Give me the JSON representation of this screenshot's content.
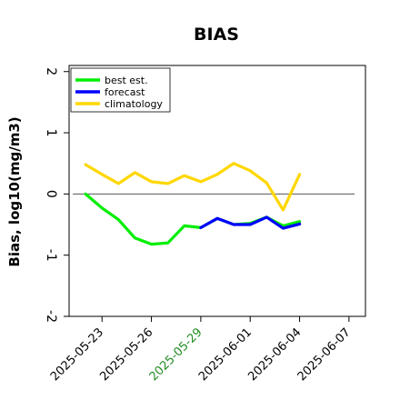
{
  "chart_data": {
    "type": "line",
    "title": "BIAS",
    "xlabel": "",
    "ylabel": "Bias, log10(mg/m3)",
    "xlim": [
      "2025-05-21",
      "2025-06-08"
    ],
    "ylim": [
      -2.0,
      2.1
    ],
    "yticks": [
      -2,
      -1,
      0,
      1,
      2
    ],
    "xticks": [
      "2025-05-23",
      "2025-05-26",
      "2025-05-29",
      "2025-06-01",
      "2025-06-04",
      "2025-06-07"
    ],
    "xtick_colors": [
      "#000000",
      "#000000",
      "#228B22",
      "#000000",
      "#000000",
      "#000000"
    ],
    "reference_line": 0,
    "grid": false,
    "legend_position": "top-left",
    "series": [
      {
        "name": "best est.",
        "color": "#00ee00",
        "x": [
          "2025-05-22",
          "2025-05-23",
          "2025-05-24",
          "2025-05-25",
          "2025-05-26",
          "2025-05-27",
          "2025-05-28",
          "2025-05-29",
          "2025-05-30",
          "2025-05-31",
          "2025-06-01",
          "2025-06-02",
          "2025-06-03",
          "2025-06-04"
        ],
        "y": [
          0.0,
          -0.23,
          -0.42,
          -0.72,
          -0.82,
          -0.8,
          -0.52,
          -0.55,
          -0.4,
          -0.5,
          -0.48,
          -0.38,
          -0.52,
          -0.45
        ]
      },
      {
        "name": "forecast",
        "color": "#0000ff",
        "x": [
          "2025-05-29",
          "2025-05-30",
          "2025-05-31",
          "2025-06-01",
          "2025-06-02",
          "2025-06-03",
          "2025-06-04"
        ],
        "y": [
          -0.55,
          -0.4,
          -0.5,
          -0.5,
          -0.38,
          -0.56,
          -0.49
        ]
      },
      {
        "name": "climatology",
        "color": "#ffd700",
        "x": [
          "2025-05-22",
          "2025-05-23",
          "2025-05-24",
          "2025-05-25",
          "2025-05-26",
          "2025-05-27",
          "2025-05-28",
          "2025-05-29",
          "2025-05-30",
          "2025-05-31",
          "2025-06-01",
          "2025-06-02",
          "2025-06-03",
          "2025-06-04"
        ],
        "y": [
          0.48,
          0.32,
          0.17,
          0.35,
          0.2,
          0.17,
          0.3,
          0.2,
          0.32,
          0.5,
          0.38,
          0.18,
          -0.26,
          0.32
        ]
      }
    ]
  }
}
